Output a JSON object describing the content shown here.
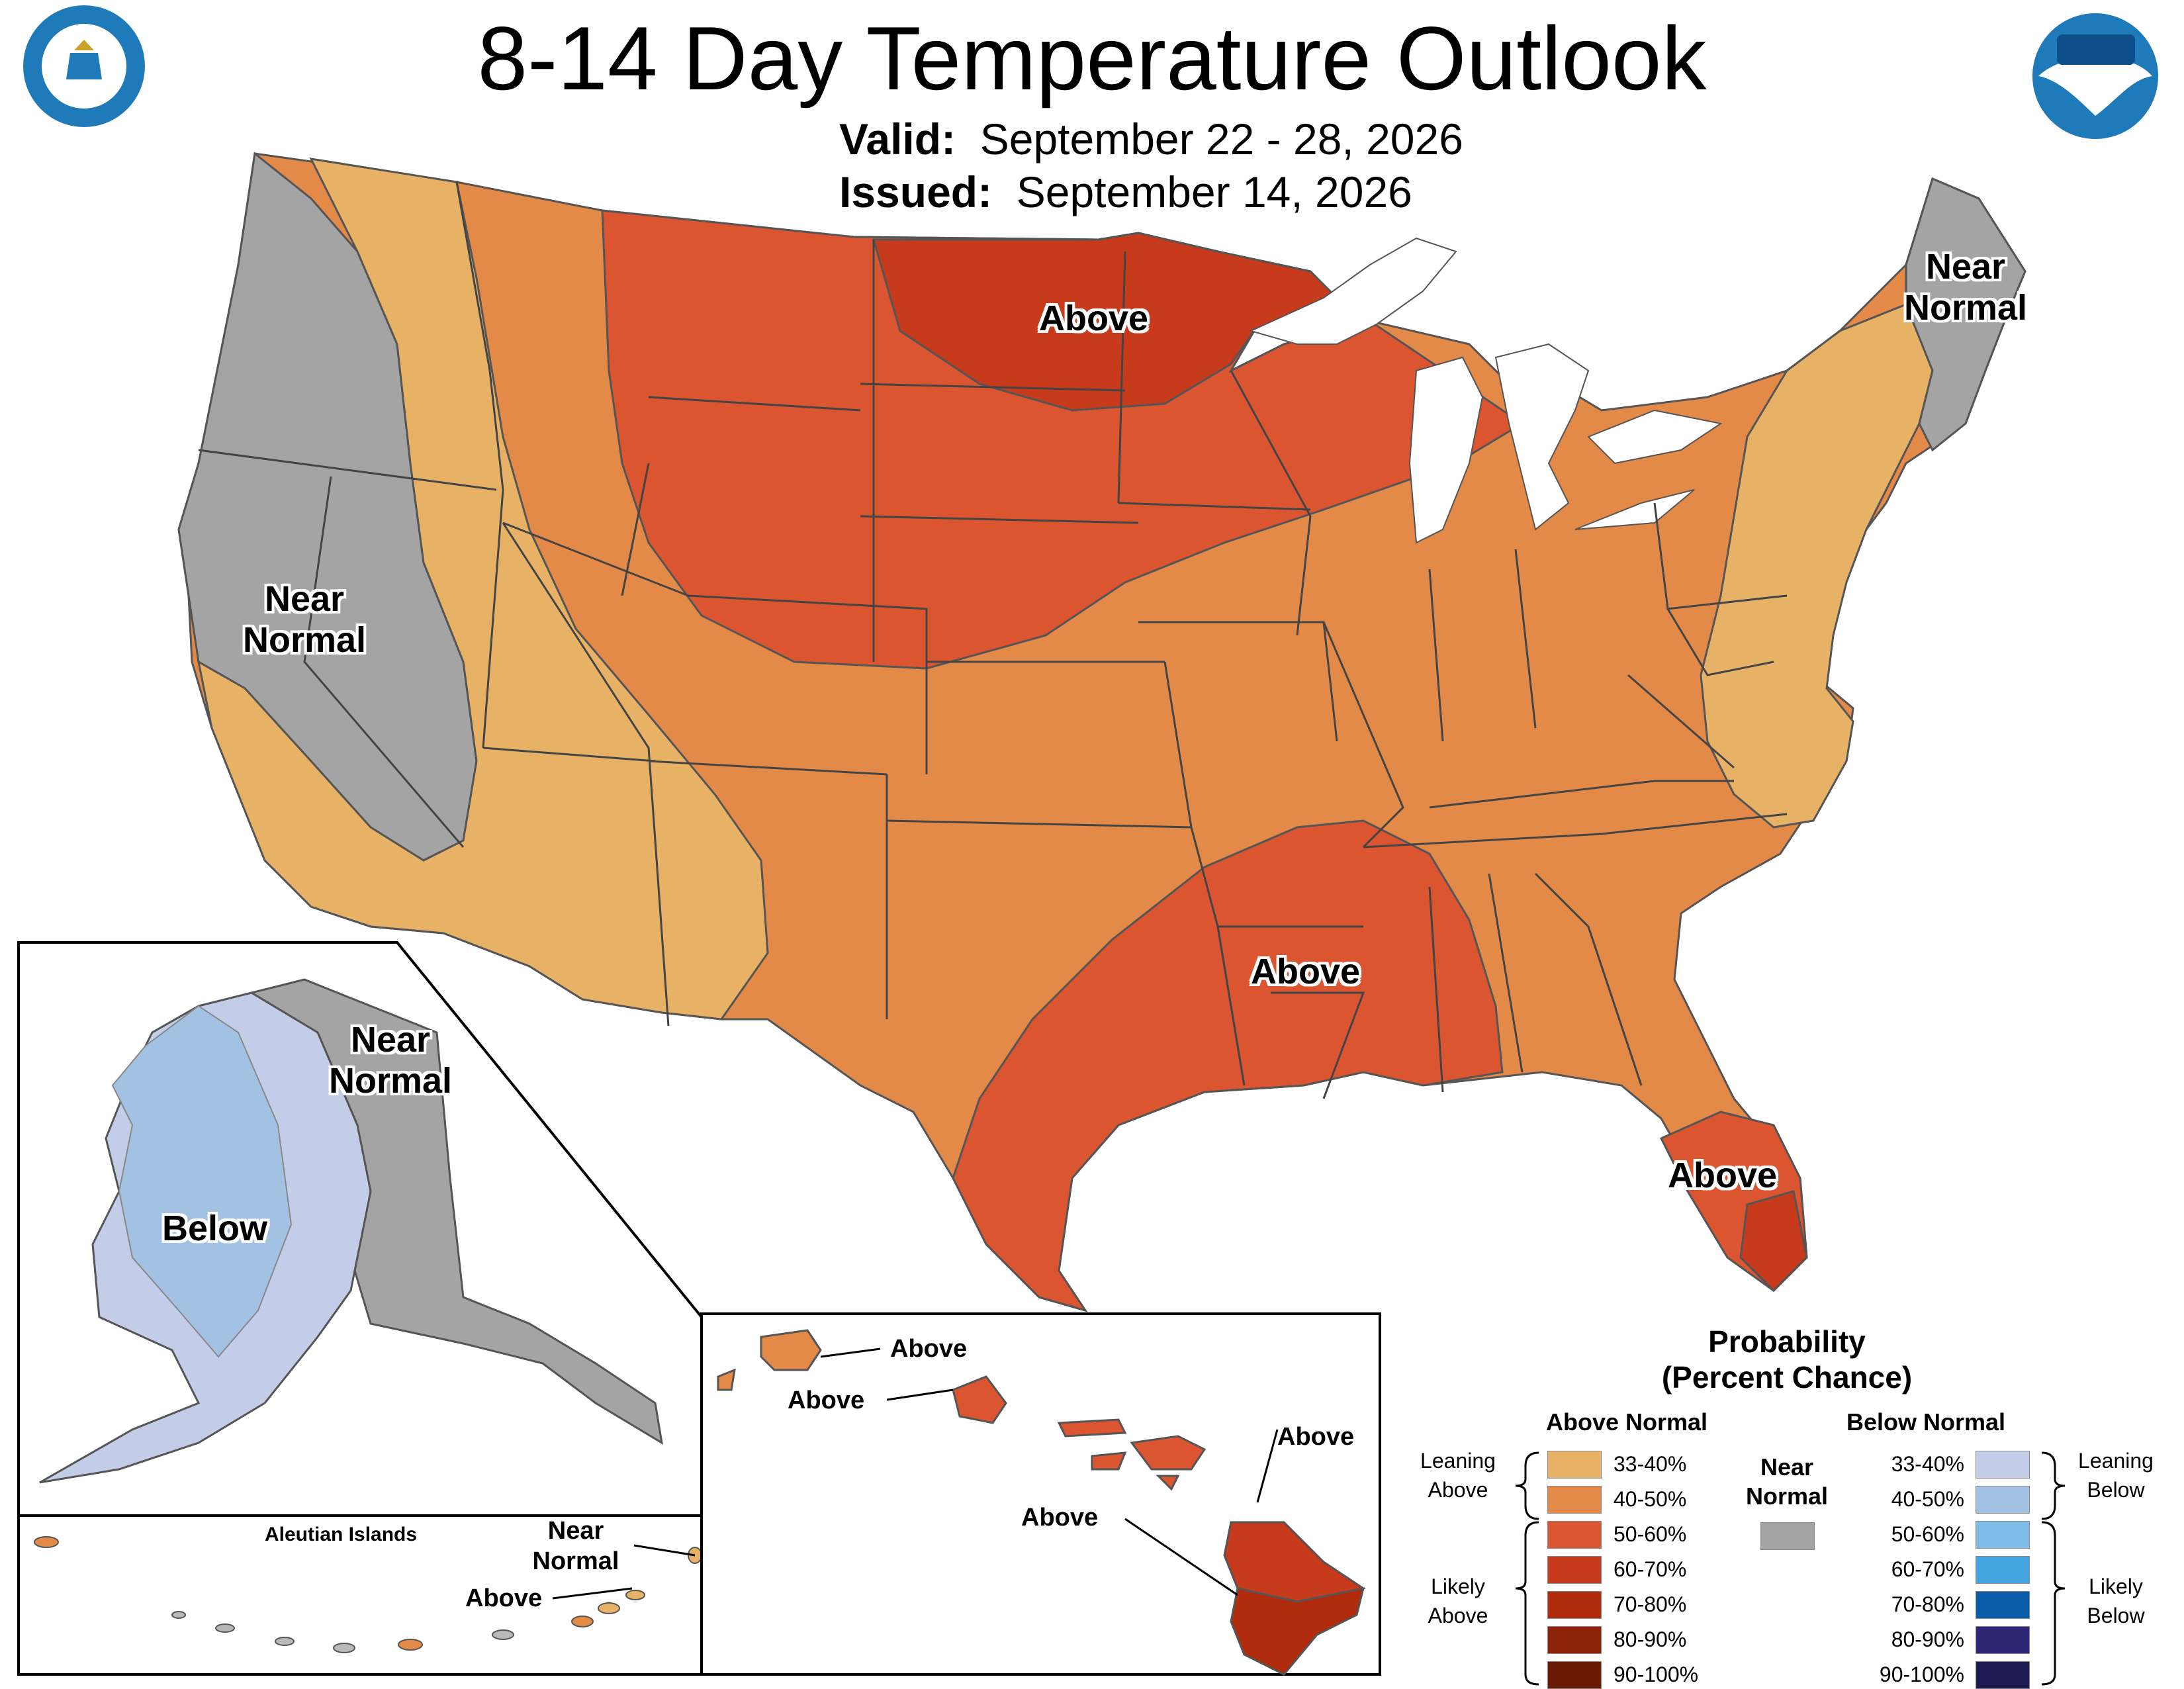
{
  "title": "8-14 Day Temperature Outlook",
  "valid": {
    "label": "Valid:",
    "value": "September 22 - 28, 2026"
  },
  "issued": {
    "label": "Issued:",
    "value": "September 14, 2026"
  },
  "logos": {
    "left": "doc-seal-icon",
    "right": "noaa-logo-icon"
  },
  "map_labels": {
    "conus_north": "Above",
    "conus_south": "Above",
    "conus_florida": "Above",
    "west_near_1": "Near",
    "west_near_2": "Normal",
    "ne_near_1": "Near",
    "ne_near_2": "Normal",
    "ak_near_1": "Near",
    "ak_near_2": "Normal",
    "ak_below": "Below",
    "aleutian_title": "Aleutian Islands",
    "aleutian_near_1": "Near",
    "aleutian_near_2": "Normal",
    "aleutian_above": "Above",
    "hi_above_1": "Above",
    "hi_above_2": "Above",
    "hi_above_3": "Above",
    "hi_above_4": "Above"
  },
  "legend": {
    "title_1": "Probability",
    "title_2": "(Percent Chance)",
    "above_header": "Above Normal",
    "below_header": "Below Normal",
    "near_1": "Near",
    "near_2": "Normal",
    "leaning_above_1": "Leaning",
    "leaning_above_2": "Above",
    "likely_above_1": "Likely",
    "likely_above_2": "Above",
    "leaning_below_1": "Leaning",
    "leaning_below_2": "Below",
    "likely_below_1": "Likely",
    "likely_below_2": "Below",
    "ranges": [
      "33-40%",
      "40-50%",
      "50-60%",
      "60-70%",
      "70-80%",
      "80-90%",
      "90-100%"
    ],
    "above_colors": [
      "#e8b266",
      "#e38a48",
      "#db5530",
      "#c73a1c",
      "#b02c0c",
      "#8c2208",
      "#6a1a04"
    ],
    "below_colors": [
      "#c3cde8",
      "#a3c2e3",
      "#80bce8",
      "#44a5e0",
      "#0a5ba8",
      "#2f2675",
      "#1d1a52"
    ],
    "near_color": "#a4a4a4"
  }
}
